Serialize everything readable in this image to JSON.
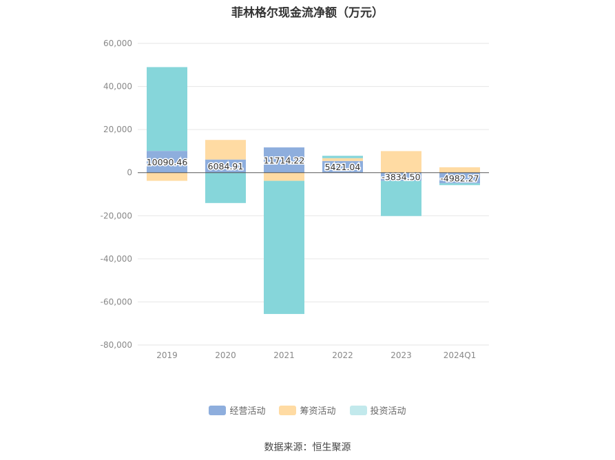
{
  "chart_data": {
    "type": "bar",
    "stacked": true,
    "title": "菲林格尔现金流净额（万元）",
    "categories": [
      "2019",
      "2020",
      "2021",
      "2022",
      "2023",
      "2024Q1"
    ],
    "ylim": [
      -80000,
      60000
    ],
    "yticks": [
      60000,
      40000,
      20000,
      0,
      -20000,
      -40000,
      -60000,
      -80000
    ],
    "ytick_labels": [
      "60,000",
      "40,000",
      "20,000",
      "0",
      "-20,000",
      "-40,000",
      "-60,000",
      "-80,000"
    ],
    "grid": true,
    "legend_position": "bottom",
    "series": [
      {
        "name": "经营活动",
        "color": "#8eaedd",
        "values": [
          10090.46,
          6084.91,
          11714.22,
          5421.04,
          -3834.5,
          -4982.27
        ],
        "labels": [
          "10090.46",
          "6084.91",
          "11714.22",
          "5421.04",
          "-3834.50",
          "-4982.27"
        ]
      },
      {
        "name": "筹资活动",
        "color": "#ffdba3",
        "values": [
          -3800,
          9100,
          -3800,
          1300,
          10000,
          2500
        ]
      },
      {
        "name": "投资活动",
        "color": "#86d6da",
        "values": [
          38900,
          -14100,
          -61800,
          1100,
          -16300,
          -800
        ]
      }
    ]
  },
  "legend": {
    "items": [
      "经营活动",
      "筹资活动",
      "投资活动"
    ]
  },
  "source": "数据来源：恒生聚源"
}
